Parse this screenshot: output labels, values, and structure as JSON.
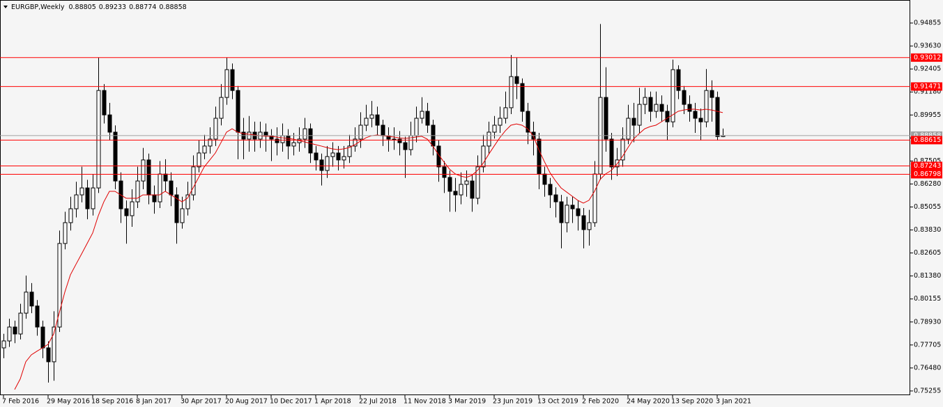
{
  "chart_data": {
    "type": "candlestick",
    "title": "EURGBP,Weekly",
    "categories": [
      "7 Feb 2016",
      null,
      null,
      null,
      null,
      null,
      null,
      null,
      "29 May 2016",
      null,
      null,
      null,
      null,
      null,
      null,
      null,
      "18 Sep 2016",
      null,
      null,
      null,
      null,
      null,
      null,
      null,
      "8 Jan 2017",
      null,
      null,
      null,
      null,
      null,
      null,
      null,
      "30 Apr 2017",
      null,
      null,
      null,
      null,
      null,
      null,
      null,
      "20 Aug 2017",
      null,
      null,
      null,
      null,
      null,
      null,
      null,
      "10 Dec 2017",
      null,
      null,
      null,
      null,
      null,
      null,
      null,
      "1 Apr 2018",
      null,
      null,
      null,
      null,
      null,
      null,
      null,
      "22 Jul 2018",
      null,
      null,
      null,
      null,
      null,
      null,
      null,
      "11 Nov 2018",
      null,
      null,
      null,
      null,
      null,
      null,
      null,
      "3 Mar 2019",
      null,
      null,
      null,
      null,
      null,
      null,
      null,
      "23 Jun 2019",
      null,
      null,
      null,
      null,
      null,
      null,
      null,
      "13 Oct 2019",
      null,
      null,
      null,
      null,
      null,
      null,
      null,
      "2 Feb 2020",
      null,
      null,
      null,
      null,
      null,
      null,
      null,
      "24 May 2020",
      null,
      null,
      null,
      null,
      null,
      null,
      null,
      "13 Sep 2020",
      null,
      null,
      null,
      null,
      null,
      null,
      null,
      "3 Jan 2021",
      null
    ],
    "open": [
      0.7755,
      0.7792,
      0.7866,
      0.7829,
      0.794,
      0.8052,
      0.7978,
      0.7866,
      0.7755,
      0.7681,
      0.7866,
      0.8311,
      0.8422,
      0.8496,
      0.857,
      0.8607,
      0.8496,
      0.8607,
      0.9126,
      0.8996,
      0.8904,
      0.8644,
      0.8496,
      0.8459,
      0.8533,
      0.8644,
      0.8756,
      0.857,
      0.8533,
      0.8681,
      0.8644,
      0.857,
      0.8422,
      0.8496,
      0.857,
      0.8719,
      0.8793,
      0.883,
      0.8867,
      0.8978,
      0.9089,
      0.9237,
      0.9126,
      0.8904,
      0.8867,
      0.8904,
      0.8867,
      0.8904,
      0.8885,
      0.8867,
      0.8848,
      0.8885,
      0.883,
      0.8848,
      0.8867,
      0.8922,
      0.8793,
      0.8756,
      0.87,
      0.8774,
      0.8793,
      0.8756,
      0.8774,
      0.883,
      0.8867,
      0.8941,
      0.8978,
      0.8996,
      0.8941,
      0.8885,
      0.8867,
      0.8867,
      0.8848,
      0.8811,
      0.8885,
      0.8978,
      0.9015,
      0.8941,
      0.883,
      0.8719,
      0.8663,
      0.8589,
      0.857,
      0.8626,
      0.8644,
      0.8552,
      0.8719,
      0.883,
      0.8904,
      0.8941,
      0.8978,
      0.9034,
      0.92,
      0.9163,
      0.9015,
      0.8904,
      0.8867,
      0.8681,
      0.8626,
      0.857,
      0.8533,
      0.8422,
      0.8515,
      0.8496,
      0.8459,
      0.8385,
      0.8422,
      0.8681,
      0.9089,
      0.8867,
      0.8719,
      0.8756,
      0.8867,
      0.8978,
      0.8941,
      0.9052,
      0.9089,
      0.9015,
      0.9052,
      0.9015,
      0.8959,
      0.9237,
      0.9126,
      0.9052,
      0.9015,
      0.8978,
      0.8959,
      0.9126,
      0.9089,
      0.88805
    ],
    "high": [
      0.783,
      0.791,
      0.79,
      0.799,
      0.814,
      0.81,
      0.801,
      0.79,
      0.779,
      0.795,
      0.838,
      0.848,
      0.856,
      0.864,
      0.872,
      0.865,
      0.868,
      0.9301,
      0.916,
      0.906,
      0.894,
      0.869,
      0.854,
      0.86,
      0.872,
      0.882,
      0.879,
      0.862,
      0.875,
      0.876,
      0.869,
      0.861,
      0.856,
      0.864,
      0.878,
      0.886,
      0.889,
      0.893,
      0.904,
      0.916,
      0.9301,
      0.927,
      0.915,
      0.898,
      0.899,
      0.896,
      0.896,
      0.895,
      0.892,
      0.893,
      0.895,
      0.892,
      0.89,
      0.893,
      0.898,
      0.895,
      0.883,
      0.879,
      0.883,
      0.885,
      0.883,
      0.883,
      0.889,
      0.893,
      0.901,
      0.905,
      0.907,
      0.904,
      0.897,
      0.893,
      0.893,
      0.891,
      0.888,
      0.896,
      0.904,
      0.909,
      0.906,
      0.897,
      0.886,
      0.875,
      0.87,
      0.866,
      0.869,
      0.87,
      0.868,
      0.878,
      0.889,
      0.896,
      0.899,
      0.904,
      0.912,
      0.9315,
      0.93,
      0.919,
      0.906,
      0.896,
      0.89,
      0.872,
      0.866,
      0.861,
      0.857,
      0.856,
      0.856,
      0.854,
      0.85,
      0.849,
      0.875,
      0.948,
      0.925,
      0.89,
      0.882,
      0.893,
      0.905,
      0.906,
      0.914,
      0.914,
      0.912,
      0.912,
      0.91,
      0.905,
      0.929,
      0.926,
      0.915,
      0.91,
      0.906,
      0.903,
      0.924,
      0.918,
      0.912,
      0.89233
    ],
    "low": [
      0.77,
      0.776,
      0.778,
      0.78,
      0.791,
      0.794,
      0.782,
      0.77,
      0.757,
      0.758,
      0.784,
      0.828,
      0.838,
      0.845,
      0.853,
      0.844,
      0.846,
      0.858,
      0.895,
      0.886,
      0.86,
      0.842,
      0.831,
      0.84,
      0.85,
      0.86,
      0.852,
      0.847,
      0.85,
      0.859,
      0.851,
      0.831,
      0.839,
      0.846,
      0.854,
      0.869,
      0.876,
      0.879,
      0.883,
      0.894,
      0.905,
      0.908,
      0.876,
      0.876,
      0.88,
      0.88,
      0.882,
      0.88,
      0.875,
      0.878,
      0.88,
      0.876,
      0.878,
      0.88,
      0.882,
      0.874,
      0.87,
      0.862,
      0.866,
      0.872,
      0.87,
      0.871,
      0.874,
      0.88,
      0.882,
      0.891,
      0.893,
      0.889,
      0.883,
      0.88,
      0.881,
      0.878,
      0.866,
      0.878,
      0.885,
      0.895,
      0.89,
      0.878,
      0.864,
      0.858,
      0.848,
      0.848,
      0.852,
      0.856,
      0.848,
      0.852,
      0.869,
      0.879,
      0.887,
      0.89,
      0.895,
      0.9,
      0.908,
      0.896,
      0.884,
      0.878,
      0.86,
      0.856,
      0.85,
      0.845,
      0.8285,
      0.837,
      0.842,
      0.838,
      0.8285,
      0.83,
      0.84,
      0.865,
      0.88,
      0.865,
      0.867,
      0.872,
      0.884,
      0.885,
      0.89,
      0.9,
      0.896,
      0.898,
      0.896,
      0.886,
      0.893,
      0.908,
      0.9,
      0.896,
      0.89,
      0.886,
      0.893,
      0.896,
      0.886,
      0.88774
    ],
    "close": [
      0.7792,
      0.7866,
      0.7829,
      0.794,
      0.8052,
      0.7978,
      0.7866,
      0.7755,
      0.7681,
      0.7866,
      0.8311,
      0.8422,
      0.8496,
      0.857,
      0.8607,
      0.8496,
      0.8607,
      0.9126,
      0.8996,
      0.8904,
      0.8644,
      0.8496,
      0.8459,
      0.8533,
      0.8644,
      0.8756,
      0.857,
      0.8533,
      0.8681,
      0.8644,
      0.857,
      0.8422,
      0.8496,
      0.857,
      0.8719,
      0.8793,
      0.883,
      0.8867,
      0.8978,
      0.9089,
      0.9237,
      0.9126,
      0.8904,
      0.8867,
      0.8904,
      0.8867,
      0.8904,
      0.8885,
      0.8867,
      0.8848,
      0.8885,
      0.883,
      0.8848,
      0.8867,
      0.8922,
      0.8793,
      0.8756,
      0.87,
      0.8774,
      0.8793,
      0.8756,
      0.8774,
      0.883,
      0.8867,
      0.8941,
      0.8978,
      0.8996,
      0.8941,
      0.8885,
      0.8867,
      0.8867,
      0.8848,
      0.8811,
      0.8885,
      0.8978,
      0.9015,
      0.8941,
      0.883,
      0.8719,
      0.8663,
      0.8589,
      0.857,
      0.8626,
      0.8644,
      0.8552,
      0.8719,
      0.883,
      0.8904,
      0.8941,
      0.8978,
      0.9034,
      0.92,
      0.9163,
      0.9015,
      0.8904,
      0.8867,
      0.8681,
      0.8626,
      0.857,
      0.8533,
      0.8422,
      0.8515,
      0.8496,
      0.8459,
      0.8385,
      0.8422,
      0.8681,
      0.9089,
      0.8867,
      0.8719,
      0.8756,
      0.8867,
      0.8978,
      0.8941,
      0.9052,
      0.9089,
      0.9015,
      0.9052,
      0.9015,
      0.8959,
      0.9237,
      0.9126,
      0.9052,
      0.9015,
      0.8978,
      0.8959,
      0.9126,
      0.9089,
      0.88805,
      0.88858
    ],
    "up_color": "#ffffff",
    "down_color": "#000000",
    "ma": {
      "color": "#e00000",
      "values": [
        null,
        null,
        0.7533,
        0.7589,
        0.7681,
        0.7718,
        0.7737,
        0.7755,
        0.7774,
        0.7829,
        0.7941,
        0.8052,
        0.8144,
        0.82,
        0.8255,
        0.8311,
        0.8367,
        0.8459,
        0.8533,
        0.8589,
        0.8589,
        0.857,
        0.8552,
        0.8552,
        0.8552,
        0.857,
        0.857,
        0.857,
        0.857,
        0.8589,
        0.857,
        0.8552,
        0.8533,
        0.8552,
        0.8607,
        0.8663,
        0.8719,
        0.8756,
        0.8793,
        0.8848,
        0.8904,
        0.8922,
        0.8904,
        0.8896,
        0.8893,
        0.8889,
        0.8885,
        0.8882,
        0.8882,
        0.8878,
        0.8874,
        0.8871,
        0.8867,
        0.8859,
        0.8852,
        0.8845,
        0.8837,
        0.883,
        0.8822,
        0.8815,
        0.8811,
        0.8815,
        0.8822,
        0.8837,
        0.8856,
        0.8874,
        0.8885,
        0.8889,
        0.8885,
        0.8882,
        0.8878,
        0.8874,
        0.8871,
        0.8874,
        0.8878,
        0.8882,
        0.8867,
        0.883,
        0.8785,
        0.8745,
        0.8707,
        0.8682,
        0.867,
        0.8663,
        0.8674,
        0.87,
        0.8737,
        0.8785,
        0.883,
        0.8874,
        0.8911,
        0.8941,
        0.8948,
        0.8941,
        0.8922,
        0.8885,
        0.8811,
        0.8748,
        0.8689,
        0.8645,
        0.8607,
        0.8585,
        0.8563,
        0.8541,
        0.8526,
        0.8541,
        0.8589,
        0.8652,
        0.8682,
        0.87,
        0.8733,
        0.8774,
        0.8822,
        0.8867,
        0.8896,
        0.8922,
        0.8934,
        0.8941,
        0.8959,
        0.8978,
        0.8996,
        0.9015,
        0.9022,
        0.9026,
        0.9026,
        0.9022,
        0.9026,
        0.9022,
        0.9015,
        0.9008
      ]
    },
    "levels": [
      0.93012,
      0.91471,
      0.88615,
      0.87243,
      0.86798
    ],
    "levels_color": "#ff0000",
    "price_line_color": "#a0a0a0",
    "ylim": [
      0.7503,
      0.9608
    ],
    "yticks": [
      0.94855,
      {
        "value": 0.9363,
        "label": "0.93630"
      },
      0.92405,
      {
        "value": 0.9118,
        "label": "0.91180"
      },
      0.89955,
      {
        "value": 0.8873,
        "label": "0.88730"
      },
      0.87505,
      {
        "value": 0.8628,
        "label": "0.86280"
      },
      0.85055,
      {
        "value": 0.8383,
        "label": "0.83830"
      },
      0.82605,
      {
        "value": 0.8138,
        "label": "0.81380"
      },
      0.80155,
      {
        "value": 0.7893,
        "label": "0.78930"
      },
      0.77705,
      {
        "value": 0.7648,
        "label": "0.76480"
      },
      0.75255
    ]
  }
}
